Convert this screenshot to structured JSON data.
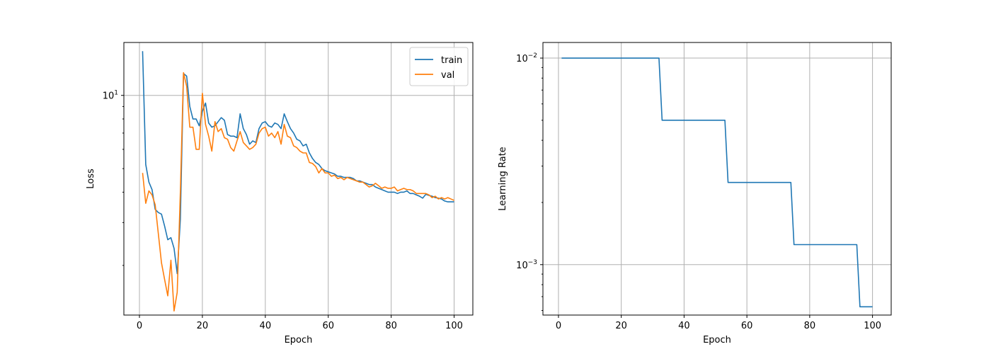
{
  "chart_data": [
    {
      "type": "line",
      "title": "",
      "xlabel": "Epoch",
      "ylabel": "Loss",
      "yscale": "log",
      "xlim": [
        -4.95,
        105.95
      ],
      "ylim": [
        1.25,
        16.5
      ],
      "xticks": [
        0,
        20,
        40,
        60,
        80,
        100
      ],
      "xtick_labels": [
        "0",
        "20",
        "40",
        "60",
        "80",
        "100"
      ],
      "yticks": [
        10
      ],
      "ytick_labels": [
        {
          "base": "10",
          "exp": "1"
        }
      ],
      "grid": true,
      "legend": "top-right",
      "series": [
        {
          "name": "train",
          "color": "#1f77b4",
          "x": [
            1,
            2,
            3,
            4,
            5,
            6,
            7,
            8,
            9,
            10,
            11,
            12,
            13,
            14,
            15,
            16,
            17,
            18,
            19,
            20,
            21,
            22,
            23,
            24,
            25,
            26,
            27,
            28,
            29,
            30,
            31,
            32,
            33,
            34,
            35,
            36,
            37,
            38,
            39,
            40,
            41,
            42,
            43,
            44,
            45,
            46,
            47,
            48,
            49,
            50,
            51,
            52,
            53,
            54,
            55,
            56,
            57,
            58,
            59,
            60,
            61,
            62,
            63,
            64,
            65,
            66,
            67,
            68,
            69,
            70,
            71,
            72,
            73,
            74,
            75,
            76,
            77,
            78,
            79,
            80,
            81,
            82,
            83,
            84,
            85,
            86,
            87,
            88,
            89,
            90,
            91,
            92,
            93,
            94,
            95,
            96,
            97,
            98,
            99,
            100
          ],
          "values": [
            15.2,
            5.2,
            4.4,
            4.1,
            3.4,
            3.3,
            3.25,
            2.9,
            2.55,
            2.6,
            2.35,
            1.85,
            3.1,
            12.3,
            12.0,
            9.0,
            8.0,
            8.0,
            7.5,
            8.6,
            9.3,
            7.7,
            7.4,
            7.5,
            7.8,
            8.1,
            7.9,
            6.9,
            6.8,
            6.8,
            6.7,
            8.4,
            7.3,
            6.9,
            6.3,
            6.5,
            6.4,
            7.3,
            7.7,
            7.8,
            7.5,
            7.4,
            7.7,
            7.6,
            7.3,
            8.4,
            7.8,
            7.3,
            7.0,
            6.6,
            6.5,
            6.2,
            6.3,
            5.8,
            5.5,
            5.3,
            5.2,
            5.0,
            4.9,
            4.85,
            4.8,
            4.75,
            4.65,
            4.65,
            4.6,
            4.6,
            4.6,
            4.55,
            4.45,
            4.45,
            4.4,
            4.35,
            4.3,
            4.3,
            4.2,
            4.15,
            4.1,
            4.05,
            4.0,
            4.0,
            4.0,
            3.95,
            4.0,
            4.0,
            4.05,
            3.95,
            3.95,
            3.9,
            3.85,
            3.78,
            3.92,
            3.88,
            3.85,
            3.8,
            3.78,
            3.75,
            3.68,
            3.65,
            3.65,
            3.65
          ]
        },
        {
          "name": "val",
          "color": "#ff7f0e",
          "x": [
            1,
            2,
            3,
            4,
            5,
            6,
            7,
            8,
            9,
            10,
            11,
            12,
            13,
            14,
            15,
            16,
            17,
            18,
            19,
            20,
            21,
            22,
            23,
            24,
            25,
            26,
            27,
            28,
            29,
            30,
            31,
            32,
            33,
            34,
            35,
            36,
            37,
            38,
            39,
            40,
            41,
            42,
            43,
            44,
            45,
            46,
            47,
            48,
            49,
            50,
            51,
            52,
            53,
            54,
            55,
            56,
            57,
            58,
            59,
            60,
            61,
            62,
            63,
            64,
            65,
            66,
            67,
            68,
            69,
            70,
            71,
            72,
            73,
            74,
            75,
            76,
            77,
            78,
            79,
            80,
            81,
            82,
            83,
            84,
            85,
            86,
            87,
            88,
            89,
            90,
            91,
            92,
            93,
            94,
            95,
            96,
            97,
            98,
            99,
            100
          ],
          "values": [
            4.8,
            3.6,
            4.05,
            3.9,
            3.55,
            2.7,
            2.05,
            1.75,
            1.5,
            2.1,
            1.3,
            1.55,
            4.0,
            12.4,
            10.9,
            7.4,
            7.4,
            6.0,
            6.0,
            10.2,
            7.6,
            6.8,
            5.9,
            7.8,
            7.1,
            7.3,
            6.7,
            6.6,
            6.1,
            5.9,
            6.5,
            7.1,
            6.4,
            6.2,
            6.0,
            6.1,
            6.3,
            7.0,
            7.3,
            7.4,
            6.8,
            7.0,
            6.7,
            7.1,
            6.3,
            7.6,
            6.8,
            6.7,
            6.2,
            6.1,
            5.9,
            5.8,
            5.8,
            5.3,
            5.25,
            5.1,
            4.8,
            5.0,
            4.8,
            4.8,
            4.65,
            4.7,
            4.55,
            4.6,
            4.5,
            4.6,
            4.55,
            4.5,
            4.45,
            4.4,
            4.4,
            4.3,
            4.2,
            4.25,
            4.35,
            4.25,
            4.15,
            4.2,
            4.15,
            4.15,
            4.2,
            4.05,
            4.1,
            4.15,
            4.1,
            4.1,
            4.05,
            3.95,
            3.95,
            3.95,
            3.95,
            3.9,
            3.8,
            3.85,
            3.75,
            3.8,
            3.75,
            3.8,
            3.75,
            3.7
          ]
        }
      ]
    },
    {
      "type": "line",
      "title": "",
      "xlabel": "Epoch",
      "ylabel": "Learning Rate",
      "yscale": "log",
      "xlim": [
        -4.95,
        105.95
      ],
      "ylim": [
        0.00057,
        0.0119
      ],
      "xticks": [
        0,
        20,
        40,
        60,
        80,
        100
      ],
      "xtick_labels": [
        "0",
        "20",
        "40",
        "60",
        "80",
        "100"
      ],
      "yticks": [
        0.01,
        0.001
      ],
      "ytick_labels": [
        {
          "base": "10",
          "exp": "−2"
        },
        {
          "base": "10",
          "exp": "−3"
        }
      ],
      "grid": true,
      "legend": "none",
      "series": [
        {
          "color": "#1f77b4",
          "x": [
            1,
            32,
            33,
            53,
            54,
            74,
            75,
            95,
            96,
            100
          ],
          "values": [
            0.01,
            0.01,
            0.005,
            0.005,
            0.0025,
            0.0025,
            0.00125,
            0.00125,
            0.000625,
            0.000625
          ]
        }
      ]
    }
  ]
}
